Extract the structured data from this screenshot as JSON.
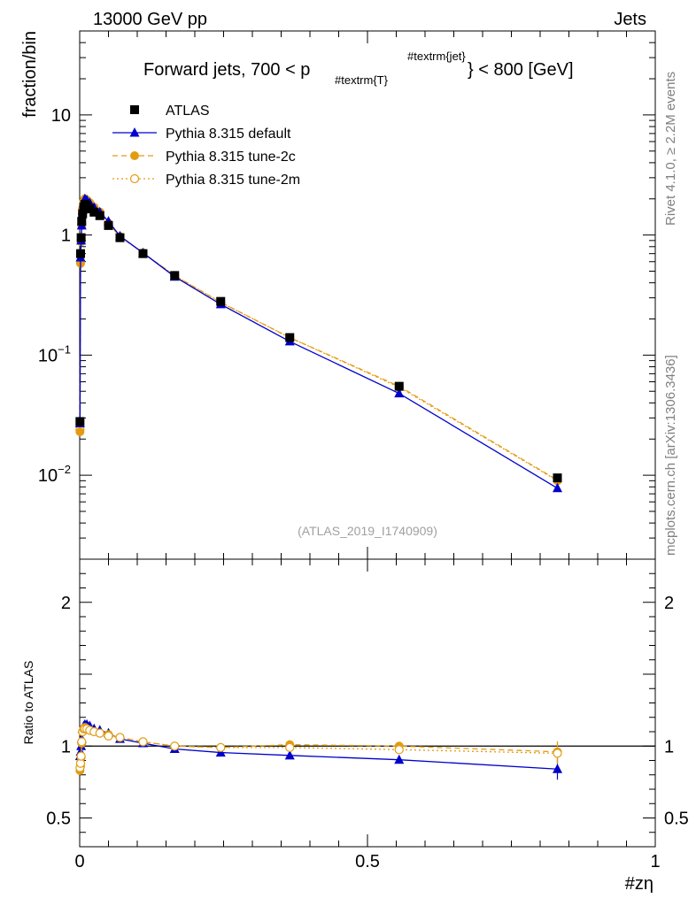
{
  "header": {
    "energy_label": "13000 GeV pp",
    "category_label": "Jets",
    "title_text": "Forward jets, 700 < p",
    "title_sub": "#textrm{T}",
    "title_sup": "#textrm{jet}",
    "title_tail": "} < 800 [GeV]",
    "watermark": "(ATLAS_2019_I1740909)",
    "side_text_top": "Rivet 4.1.0, ≥ 2.2M events",
    "side_text_bottom": "mcplots.cern.ch [arXiv:1306.3436]"
  },
  "colors": {
    "atlas": "#000000",
    "default": "#0000cc",
    "tune2c": "#e39c12",
    "tune2m": "#e39c12"
  },
  "chart_data": [
    {
      "type": "line",
      "panel": "main",
      "ylabel": "fraction/bin",
      "xlabel": "",
      "xlim": [
        0,
        1
      ],
      "ylim": [
        0.002,
        50
      ],
      "yscale": "log",
      "y_ticks": [
        {
          "value": 10,
          "label": "10"
        },
        {
          "value": 1,
          "label": "1"
        },
        {
          "value": 0.1,
          "label": "10^-1"
        },
        {
          "value": 0.01,
          "label": "10^-2"
        }
      ],
      "legend": [
        {
          "name": "ATLAS",
          "marker": "square",
          "style": "none"
        },
        {
          "name": "Pythia 8.315 default",
          "marker": "triangle",
          "style": "solid"
        },
        {
          "name": "Pythia 8.315 tune-2c",
          "marker": "circle",
          "style": "dashed"
        },
        {
          "name": "Pythia 8.315 tune-2m",
          "marker": "open-circle",
          "style": "dotted"
        }
      ],
      "x": [
        0.0005,
        0.0015,
        0.0025,
        0.0035,
        0.005,
        0.007,
        0.009,
        0.0125,
        0.0175,
        0.025,
        0.035,
        0.05,
        0.07,
        0.11,
        0.165,
        0.245,
        0.365,
        0.555,
        0.83
      ],
      "series": [
        {
          "name": "ATLAS",
          "values": [
            0.028,
            0.7,
            0.95,
            1.3,
            1.5,
            1.7,
            1.8,
            1.75,
            1.65,
            1.55,
            1.45,
            1.2,
            0.95,
            0.7,
            0.46,
            0.28,
            0.14,
            0.055,
            0.0095
          ]
        },
        {
          "name": "Pythia 8.315 default",
          "values": [
            0.027,
            0.65,
            0.9,
            1.2,
            1.6,
            1.85,
            2.0,
            1.95,
            1.85,
            1.7,
            1.55,
            1.3,
            0.98,
            0.71,
            0.45,
            0.265,
            0.13,
            0.048,
            0.0078
          ]
        },
        {
          "name": "Pythia 8.315 tune-2c",
          "values": [
            0.023,
            0.58,
            0.88,
            1.2,
            1.65,
            1.9,
            2.0,
            1.95,
            1.85,
            1.7,
            1.55,
            1.25,
            0.97,
            0.71,
            0.46,
            0.275,
            0.14,
            0.055,
            0.0091
          ]
        },
        {
          "name": "Pythia 8.315 tune-2m",
          "values": [
            0.024,
            0.6,
            0.9,
            1.22,
            1.65,
            1.9,
            2.0,
            1.95,
            1.85,
            1.7,
            1.55,
            1.25,
            0.97,
            0.71,
            0.46,
            0.275,
            0.14,
            0.054,
            0.009
          ]
        }
      ]
    },
    {
      "type": "line",
      "panel": "ratio",
      "ylabel": "Ratio to ATLAS",
      "xlabel": "#zη",
      "xlim": [
        0,
        1
      ],
      "ylim": [
        0.3,
        2.3
      ],
      "x_ticks": [
        {
          "value": 0,
          "label": "0"
        },
        {
          "value": 0.5,
          "label": "0.5"
        },
        {
          "value": 1,
          "label": "1"
        }
      ],
      "y_ticks": [
        {
          "value": 2,
          "label": "2"
        },
        {
          "value": 1,
          "label": "1"
        },
        {
          "value": 0.5,
          "label": "0.5"
        }
      ],
      "reference": 1,
      "x": [
        0.0005,
        0.0015,
        0.0025,
        0.0035,
        0.005,
        0.007,
        0.009,
        0.0125,
        0.0175,
        0.025,
        0.035,
        0.05,
        0.07,
        0.11,
        0.165,
        0.245,
        0.365,
        0.555,
        0.83
      ],
      "series": [
        {
          "name": "Pythia 8.315 default",
          "values": [
            0.93,
            0.96,
            1.0,
            1.05,
            1.12,
            1.14,
            1.15,
            1.15,
            1.14,
            1.12,
            1.11,
            1.09,
            1.05,
            1.02,
            0.98,
            0.955,
            0.935,
            0.905,
            0.84
          ]
        },
        {
          "name": "Pythia 8.315 tune-2c",
          "values": [
            0.83,
            0.86,
            0.92,
            1.02,
            1.1,
            1.12,
            1.13,
            1.12,
            1.11,
            1.1,
            1.09,
            1.08,
            1.06,
            1.03,
            1.0,
            0.99,
            1.01,
            1.0,
            0.96
          ]
        },
        {
          "name": "Pythia 8.315 tune-2m",
          "values": [
            0.85,
            0.88,
            0.93,
            1.03,
            1.1,
            1.12,
            1.12,
            1.12,
            1.11,
            1.1,
            1.09,
            1.07,
            1.06,
            1.03,
            1.0,
            0.99,
            0.99,
            0.975,
            0.95
          ]
        }
      ]
    }
  ]
}
